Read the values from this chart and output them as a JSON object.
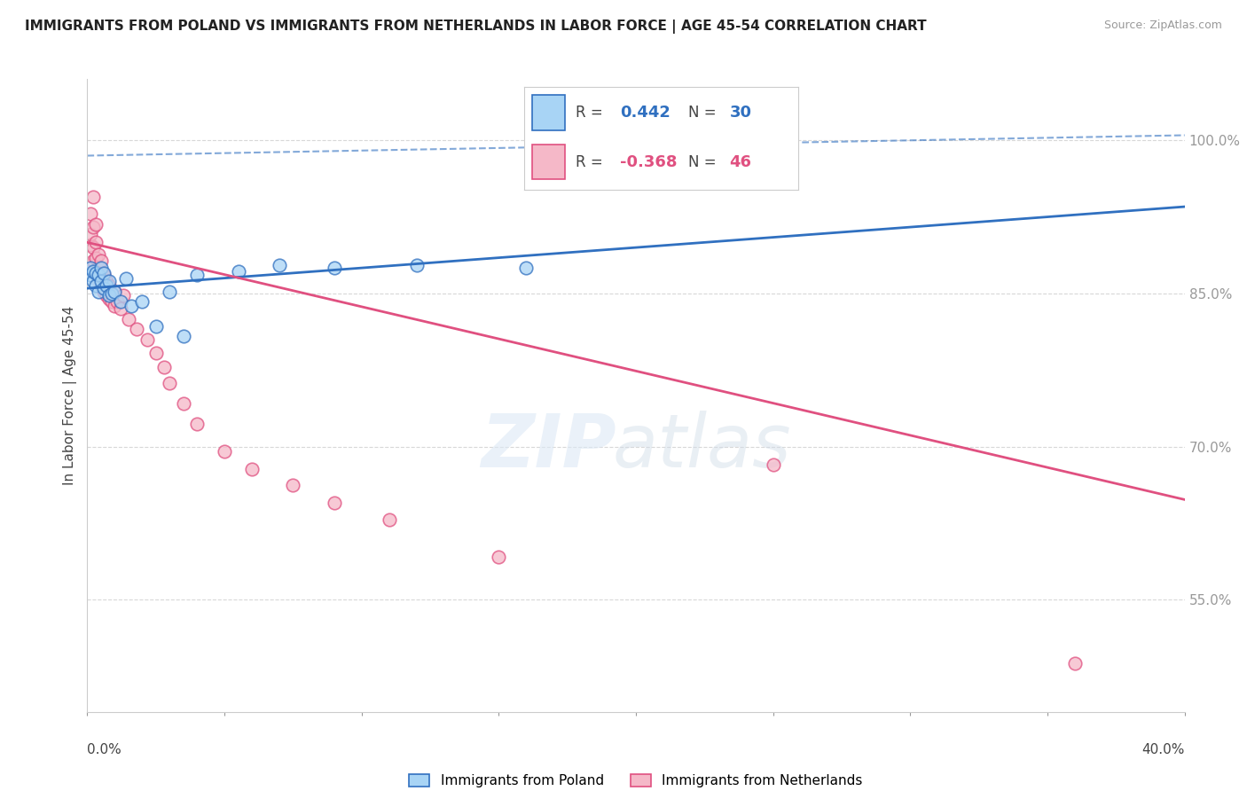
{
  "title": "IMMIGRANTS FROM POLAND VS IMMIGRANTS FROM NETHERLANDS IN LABOR FORCE | AGE 45-54 CORRELATION CHART",
  "source": "Source: ZipAtlas.com",
  "ylabel": "In Labor Force | Age 45-54",
  "legend_labels": [
    "Immigrants from Poland",
    "Immigrants from Netherlands"
  ],
  "R_poland": 0.442,
  "N_poland": 30,
  "R_netherlands": -0.368,
  "N_netherlands": 46,
  "color_poland": "#a8d4f5",
  "color_netherlands": "#f5b8c8",
  "color_poland_line": "#3070c0",
  "color_netherlands_line": "#e05080",
  "poland_scatter_x": [
    0.001,
    0.001,
    0.002,
    0.002,
    0.003,
    0.003,
    0.004,
    0.004,
    0.005,
    0.005,
    0.006,
    0.006,
    0.007,
    0.008,
    0.008,
    0.009,
    0.01,
    0.012,
    0.014,
    0.016,
    0.02,
    0.025,
    0.03,
    0.035,
    0.04,
    0.055,
    0.07,
    0.09,
    0.12,
    0.16
  ],
  "poland_scatter_y": [
    0.868,
    0.875,
    0.862,
    0.872,
    0.858,
    0.87,
    0.852,
    0.868,
    0.862,
    0.875,
    0.855,
    0.87,
    0.858,
    0.862,
    0.848,
    0.85,
    0.852,
    0.842,
    0.865,
    0.838,
    0.842,
    0.818,
    0.852,
    0.808,
    0.868,
    0.872,
    0.878,
    0.875,
    0.878,
    0.875
  ],
  "netherlands_scatter_x": [
    0.001,
    0.001,
    0.001,
    0.001,
    0.002,
    0.002,
    0.002,
    0.002,
    0.003,
    0.003,
    0.003,
    0.003,
    0.004,
    0.004,
    0.004,
    0.005,
    0.005,
    0.005,
    0.006,
    0.006,
    0.007,
    0.007,
    0.008,
    0.008,
    0.009,
    0.01,
    0.01,
    0.011,
    0.012,
    0.013,
    0.015,
    0.018,
    0.022,
    0.025,
    0.028,
    0.03,
    0.035,
    0.04,
    0.05,
    0.06,
    0.075,
    0.09,
    0.11,
    0.15,
    0.25,
    0.36
  ],
  "netherlands_scatter_y": [
    0.878,
    0.898,
    0.908,
    0.928,
    0.882,
    0.895,
    0.915,
    0.945,
    0.87,
    0.885,
    0.9,
    0.918,
    0.862,
    0.875,
    0.888,
    0.858,
    0.87,
    0.882,
    0.852,
    0.868,
    0.848,
    0.862,
    0.845,
    0.858,
    0.842,
    0.838,
    0.852,
    0.842,
    0.835,
    0.848,
    0.825,
    0.815,
    0.805,
    0.792,
    0.778,
    0.762,
    0.742,
    0.722,
    0.695,
    0.678,
    0.662,
    0.645,
    0.628,
    0.592,
    0.682,
    0.488
  ],
  "xlim": [
    0.0,
    0.4
  ],
  "ylim": [
    0.44,
    1.06
  ],
  "yticks": [
    0.55,
    0.7,
    0.85,
    1.0
  ],
  "xticks": [
    0.0,
    0.05,
    0.1,
    0.15,
    0.2,
    0.25,
    0.3,
    0.35,
    0.4
  ],
  "poland_trend_x0": 0.0,
  "poland_trend_x1": 0.4,
  "poland_trend_y0": 0.855,
  "poland_trend_y1": 0.935,
  "netherlands_trend_x0": 0.0,
  "netherlands_trend_x1": 0.4,
  "netherlands_trend_y0": 0.9,
  "netherlands_trend_y1": 0.648,
  "dash_line_x": [
    0.0,
    0.4
  ],
  "dash_line_y": [
    0.985,
    1.005
  ],
  "grid_color": "#d8d8d8",
  "spine_color": "#cccccc",
  "ytick_color": "#3070c0",
  "xtick_label_left": "0.0%",
  "xtick_label_right": "40.0%"
}
